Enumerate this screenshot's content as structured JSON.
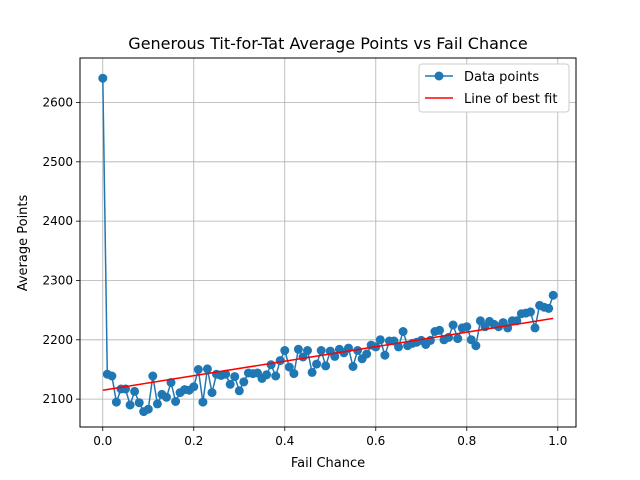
{
  "chart_data": {
    "type": "scatter",
    "title": "Generous Tit-for-Tat Average Points vs Fail Chance",
    "xlabel": "Fail Chance",
    "ylabel": "Average Points",
    "xlim": [
      -0.05,
      1.04
    ],
    "ylim": [
      2053,
      2675
    ],
    "x_ticks": [
      0.0,
      0.2,
      0.4,
      0.6,
      0.8,
      1.0
    ],
    "x_tick_labels": [
      "0.0",
      "0.2",
      "0.4",
      "0.6",
      "0.8",
      "1.0"
    ],
    "y_ticks": [
      2100,
      2200,
      2300,
      2400,
      2500,
      2600
    ],
    "y_tick_labels": [
      "2100",
      "2200",
      "2300",
      "2400",
      "2500",
      "2600"
    ],
    "grid": true,
    "legend_position": "top-right",
    "colors": {
      "points": "#1f77b4",
      "fit_line": "#ff0000",
      "grid": "#b0b0b0"
    },
    "series": [
      {
        "name": "Data points",
        "style": "line-with-markers",
        "x": [
          0.0,
          0.01,
          0.02,
          0.03,
          0.04,
          0.05,
          0.06,
          0.07,
          0.08,
          0.09,
          0.1,
          0.11,
          0.12,
          0.13,
          0.14,
          0.15,
          0.16,
          0.17,
          0.18,
          0.19,
          0.2,
          0.21,
          0.22,
          0.23,
          0.24,
          0.25,
          0.26,
          0.27,
          0.28,
          0.29,
          0.3,
          0.31,
          0.32,
          0.33,
          0.34,
          0.35,
          0.36,
          0.37,
          0.38,
          0.39,
          0.4,
          0.41,
          0.42,
          0.43,
          0.44,
          0.45,
          0.46,
          0.47,
          0.48,
          0.49,
          0.5,
          0.51,
          0.52,
          0.53,
          0.54,
          0.55,
          0.56,
          0.57,
          0.58,
          0.59,
          0.6,
          0.61,
          0.62,
          0.63,
          0.64,
          0.65,
          0.66,
          0.67,
          0.68,
          0.69,
          0.7,
          0.71,
          0.72,
          0.73,
          0.74,
          0.75,
          0.76,
          0.77,
          0.78,
          0.79,
          0.8,
          0.81,
          0.82,
          0.83,
          0.84,
          0.85,
          0.86,
          0.87,
          0.88,
          0.89,
          0.9,
          0.91,
          0.92,
          0.93,
          0.94,
          0.95,
          0.96,
          0.97,
          0.98,
          0.99
        ],
        "y": [
          2641,
          2142,
          2139,
          2095,
          2117,
          2117,
          2090,
          2113,
          2094,
          2079,
          2083,
          2139,
          2092,
          2108,
          2103,
          2128,
          2096,
          2111,
          2116,
          2115,
          2121,
          2150,
          2095,
          2151,
          2111,
          2142,
          2140,
          2142,
          2125,
          2138,
          2114,
          2129,
          2144,
          2143,
          2144,
          2135,
          2141,
          2158,
          2139,
          2165,
          2182,
          2154,
          2143,
          2184,
          2171,
          2182,
          2145,
          2159,
          2182,
          2156,
          2181,
          2172,
          2184,
          2178,
          2186,
          2155,
          2182,
          2168,
          2176,
          2191,
          2188,
          2200,
          2174,
          2198,
          2198,
          2188,
          2214,
          2190,
          2194,
          2196,
          2199,
          2192,
          2199,
          2214,
          2216,
          2200,
          2204,
          2225,
          2202,
          2220,
          2222,
          2200,
          2190,
          2232,
          2222,
          2231,
          2226,
          2222,
          2229,
          2220,
          2232,
          2232,
          2244,
          2245,
          2247,
          2220,
          2258,
          2255,
          2253,
          2275
        ]
      },
      {
        "name": "Line of best fit",
        "style": "line",
        "x": [
          0.0,
          0.99
        ],
        "y": [
          2115,
          2236
        ]
      }
    ]
  }
}
